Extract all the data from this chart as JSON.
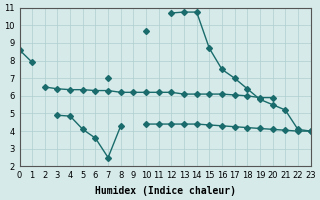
{
  "xlabel": "Humidex (Indice chaleur)",
  "ylabel": "",
  "bg_color": "#d6eaea",
  "grid_color": "#b0cece",
  "line_color": "#1a6b6b",
  "xlim": [
    0,
    23
  ],
  "ylim": [
    2,
    11
  ],
  "xticks": [
    0,
    1,
    2,
    3,
    4,
    5,
    6,
    7,
    8,
    9,
    10,
    11,
    12,
    13,
    14,
    15,
    16,
    17,
    18,
    19,
    20,
    21,
    22,
    23
  ],
  "yticks": [
    2,
    3,
    4,
    5,
    6,
    7,
    8,
    9,
    10,
    11
  ],
  "line1_x": [
    0,
    1,
    2,
    3,
    4,
    5,
    6,
    7,
    8,
    9,
    10,
    11,
    12,
    13,
    14,
    15,
    16,
    17,
    18,
    19,
    20,
    21,
    22,
    23
  ],
  "line1_y": [
    8.6,
    7.9,
    null,
    null,
    null,
    null,
    null,
    7.0,
    null,
    null,
    9.7,
    null,
    10.7,
    10.75,
    10.75,
    8.7,
    7.5,
    7.0,
    6.4,
    5.8,
    5.5,
    5.2,
    4.1,
    4.0
  ],
  "line2_x": [
    0,
    1,
    2,
    3,
    4,
    5,
    6,
    7,
    8,
    9,
    10,
    11,
    12,
    13,
    14,
    15,
    16,
    17,
    18,
    19,
    20,
    21,
    22,
    23
  ],
  "line2_y": [
    null,
    null,
    6.5,
    6.4,
    6.35,
    6.35,
    6.3,
    6.3,
    6.2,
    6.2,
    6.2,
    6.2,
    6.2,
    6.1,
    6.1,
    6.1,
    6.1,
    6.05,
    6.0,
    5.9,
    5.9,
    null,
    null,
    null
  ],
  "line3_x": [
    0,
    1,
    2,
    3,
    4,
    5,
    6,
    7,
    8,
    9,
    10,
    11,
    12,
    13,
    14,
    15,
    16,
    17,
    18,
    19,
    20,
    21,
    22,
    23
  ],
  "line3_y": [
    null,
    null,
    null,
    null,
    null,
    null,
    null,
    null,
    null,
    null,
    4.4,
    4.4,
    4.4,
    4.4,
    4.4,
    4.35,
    4.3,
    4.25,
    4.2,
    4.15,
    4.1,
    4.05,
    4.0,
    4.0
  ],
  "line4_x": [
    3,
    4,
    5,
    6,
    7,
    8,
    9
  ],
  "line4_y": [
    4.9,
    4.85,
    4.1,
    3.6,
    2.5,
    4.3,
    null
  ],
  "marker_size": 3,
  "linewidth": 1.0,
  "tick_fontsize": 6,
  "xlabel_fontsize": 7
}
